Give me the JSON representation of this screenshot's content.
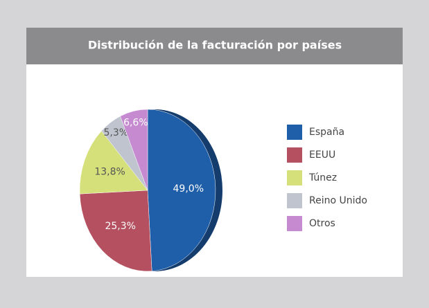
{
  "chart_data": {
    "type": "pie",
    "title": "Distribución de la facturación por países",
    "categories": [
      "España",
      "EEUU",
      "Túnez",
      "Reino Unido",
      "Otros"
    ],
    "values": [
      49.0,
      25.3,
      13.8,
      5.3,
      6.6
    ],
    "value_labels": [
      "49,0%",
      "25,3%",
      "13,8%",
      "5,3%",
      "6,6%"
    ],
    "colors": [
      "#1f5ea8",
      "#b4505f",
      "#d5e07a",
      "#c0c4ce",
      "#c58ad0"
    ],
    "legend": "right"
  }
}
